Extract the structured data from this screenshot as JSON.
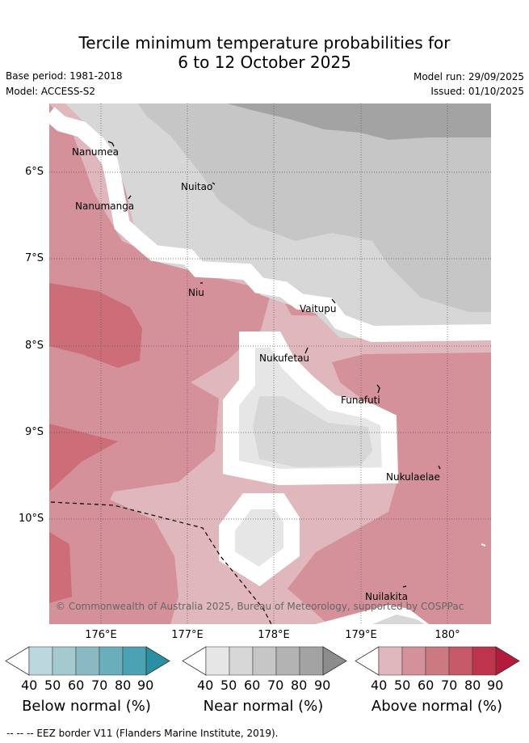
{
  "header": {
    "title_line1": "Tercile minimum temperature probabilities for",
    "title_line2": "6 to 12 October 2025",
    "base_period": "Base period: 1981-2018",
    "model": "Model: ACCESS-S2",
    "model_run": "Model run: 29/09/2025",
    "issued": "Issued: 01/10/2025"
  },
  "map": {
    "lat_labels": [
      "6°S",
      "7°S",
      "8°S",
      "9°S",
      "10°S"
    ],
    "lon_labels": [
      "176°E",
      "177°E",
      "178°E",
      "179°E",
      "180°"
    ],
    "places": [
      "Nanumea",
      "Nanumanga",
      "Nuitao",
      "Niu",
      "Vaitupu",
      "Nukufetau",
      "Funafuti",
      "Nukulaelae",
      "Nuilakita"
    ],
    "copyright": "© Commonwealth of Australia 2025, Bureau of Meteorology, supported by COSPPac"
  },
  "legend": {
    "ticks": [
      "40",
      "50",
      "60",
      "70",
      "80",
      "90"
    ],
    "below": {
      "title": "Below normal (%)",
      "colors": [
        "#ffffff",
        "#bcd7dd",
        "#a4c9cf",
        "#8bb9c3",
        "#6aadbb",
        "#4aa2b2",
        "#2b8fa3"
      ]
    },
    "near": {
      "title": "Near normal (%)",
      "colors": [
        "#ffffff",
        "#e6e6e6",
        "#d7d7d7",
        "#c6c6c6",
        "#b3b3b3",
        "#a3a3a3",
        "#8c8c8c"
      ]
    },
    "above": {
      "title": "Above normal (%)",
      "colors": [
        "#ffffff",
        "#e0b7bc",
        "#d4919a",
        "#cc7a82",
        "#c65a69",
        "#be344d",
        "#b51a3b"
      ]
    }
  },
  "footer": "-- -- -- EEZ border V11 (Flanders Marine Institute, 2019)."
}
